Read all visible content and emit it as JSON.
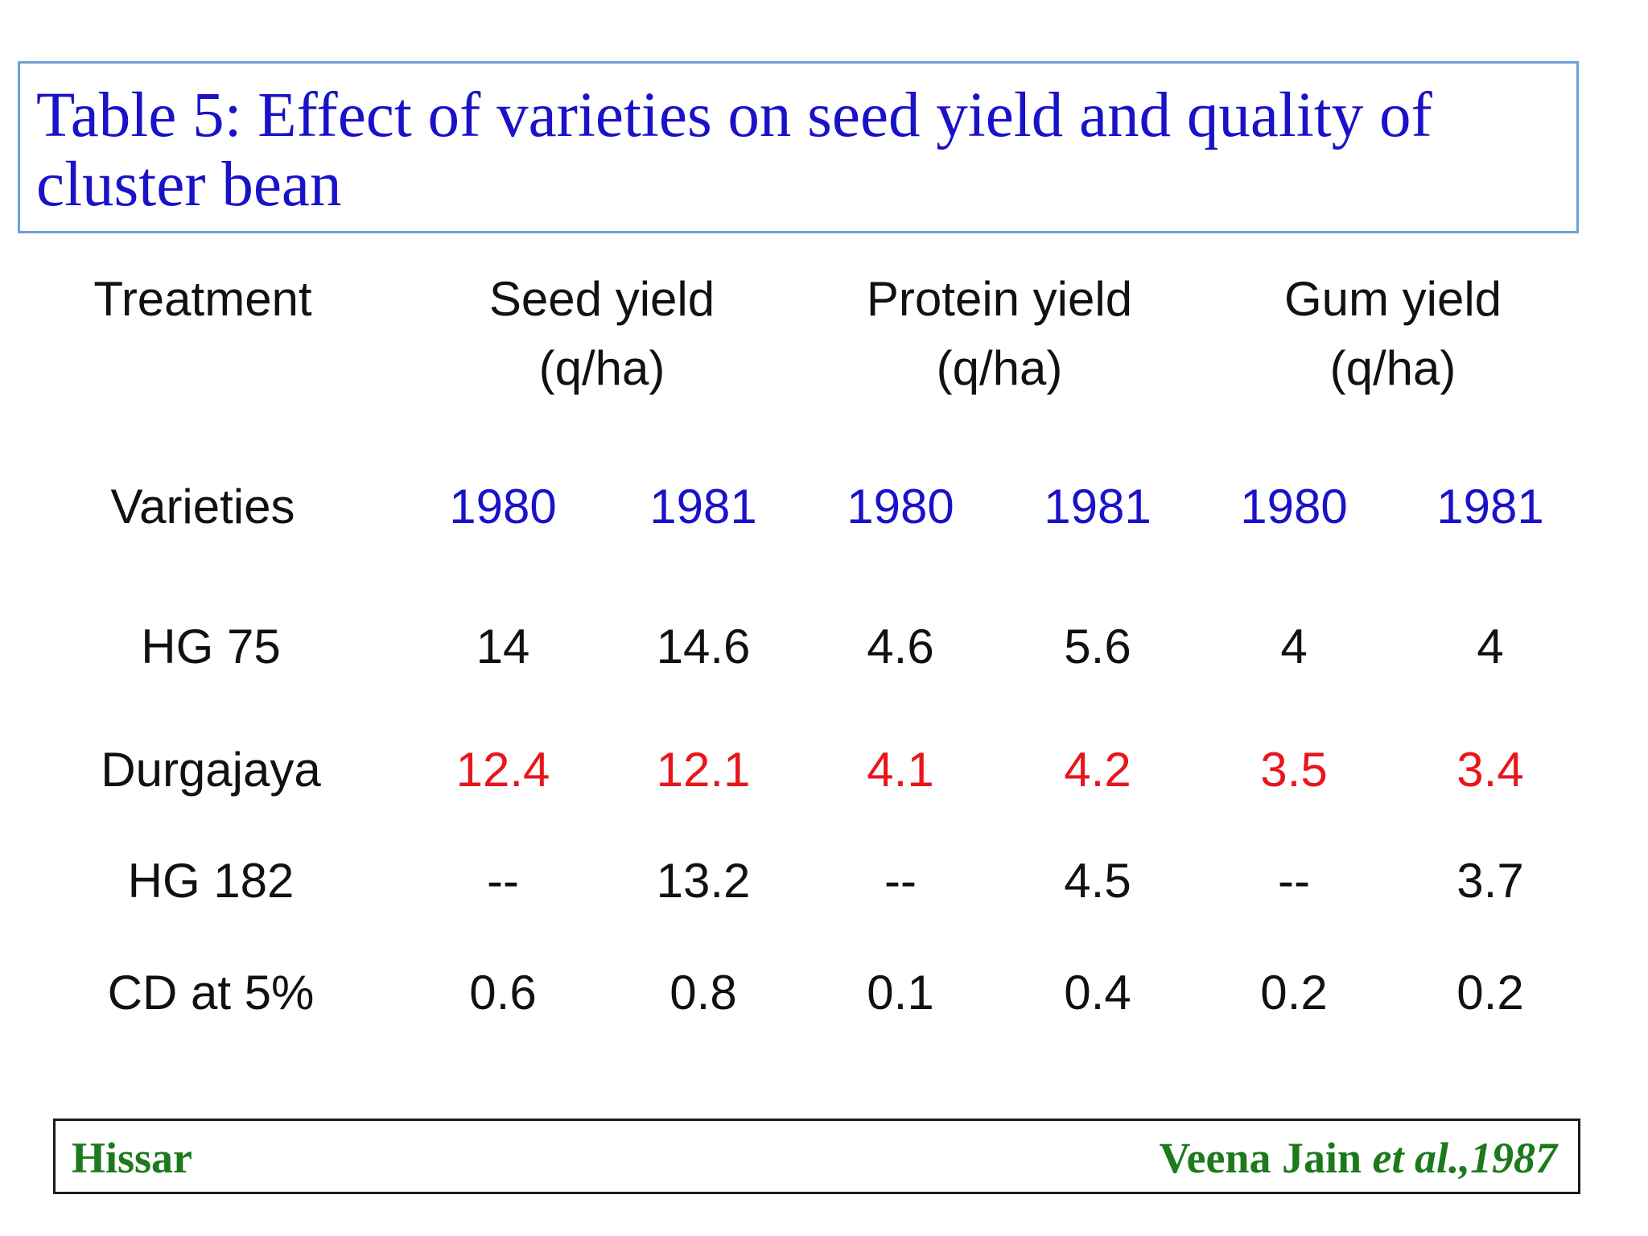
{
  "title": "Table 5: Effect of varieties on seed yield and quality of cluster bean",
  "table": {
    "header": {
      "treatment": "Treatment",
      "seed_yield": [
        "Seed yield",
        "(q/ha)"
      ],
      "protein_yield": [
        "Protein yield",
        "(q/ha)"
      ],
      "gum_yield": [
        "Gum yield",
        "(q/ha)"
      ]
    },
    "subheader": {
      "label": "Varieties",
      "years": [
        "1980",
        "1981",
        "1980",
        "1981",
        "1980",
        "1981"
      ]
    },
    "rows": [
      {
        "label": "HG 75",
        "values": [
          "14",
          "14.6",
          "4.6",
          "5.6",
          "4",
          "4"
        ],
        "highlight": false
      },
      {
        "label": "Durgajaya",
        "values": [
          "12.4",
          "12.1",
          "4.1",
          "4.2",
          "3.5",
          "3.4"
        ],
        "highlight": true
      },
      {
        "label": "HG 182",
        "values": [
          "--",
          "13.2",
          "--",
          "4.5",
          "--",
          "3.7"
        ],
        "highlight": false
      },
      {
        "label": "CD at 5%",
        "values": [
          "0.6",
          "0.8",
          "0.1",
          "0.4",
          "0.2",
          "0.2"
        ],
        "highlight": false
      }
    ]
  },
  "footer": {
    "location": "Hissar",
    "citation_author": "Veena Jain ",
    "citation_etal": "et al.",
    "citation_year": ",1987"
  },
  "colors": {
    "title": "#1a12c8",
    "years": "#1a12c8",
    "highlight_row": "#e8161b",
    "footer": "#1c7a1c",
    "title_border": "#6fa0d6"
  }
}
